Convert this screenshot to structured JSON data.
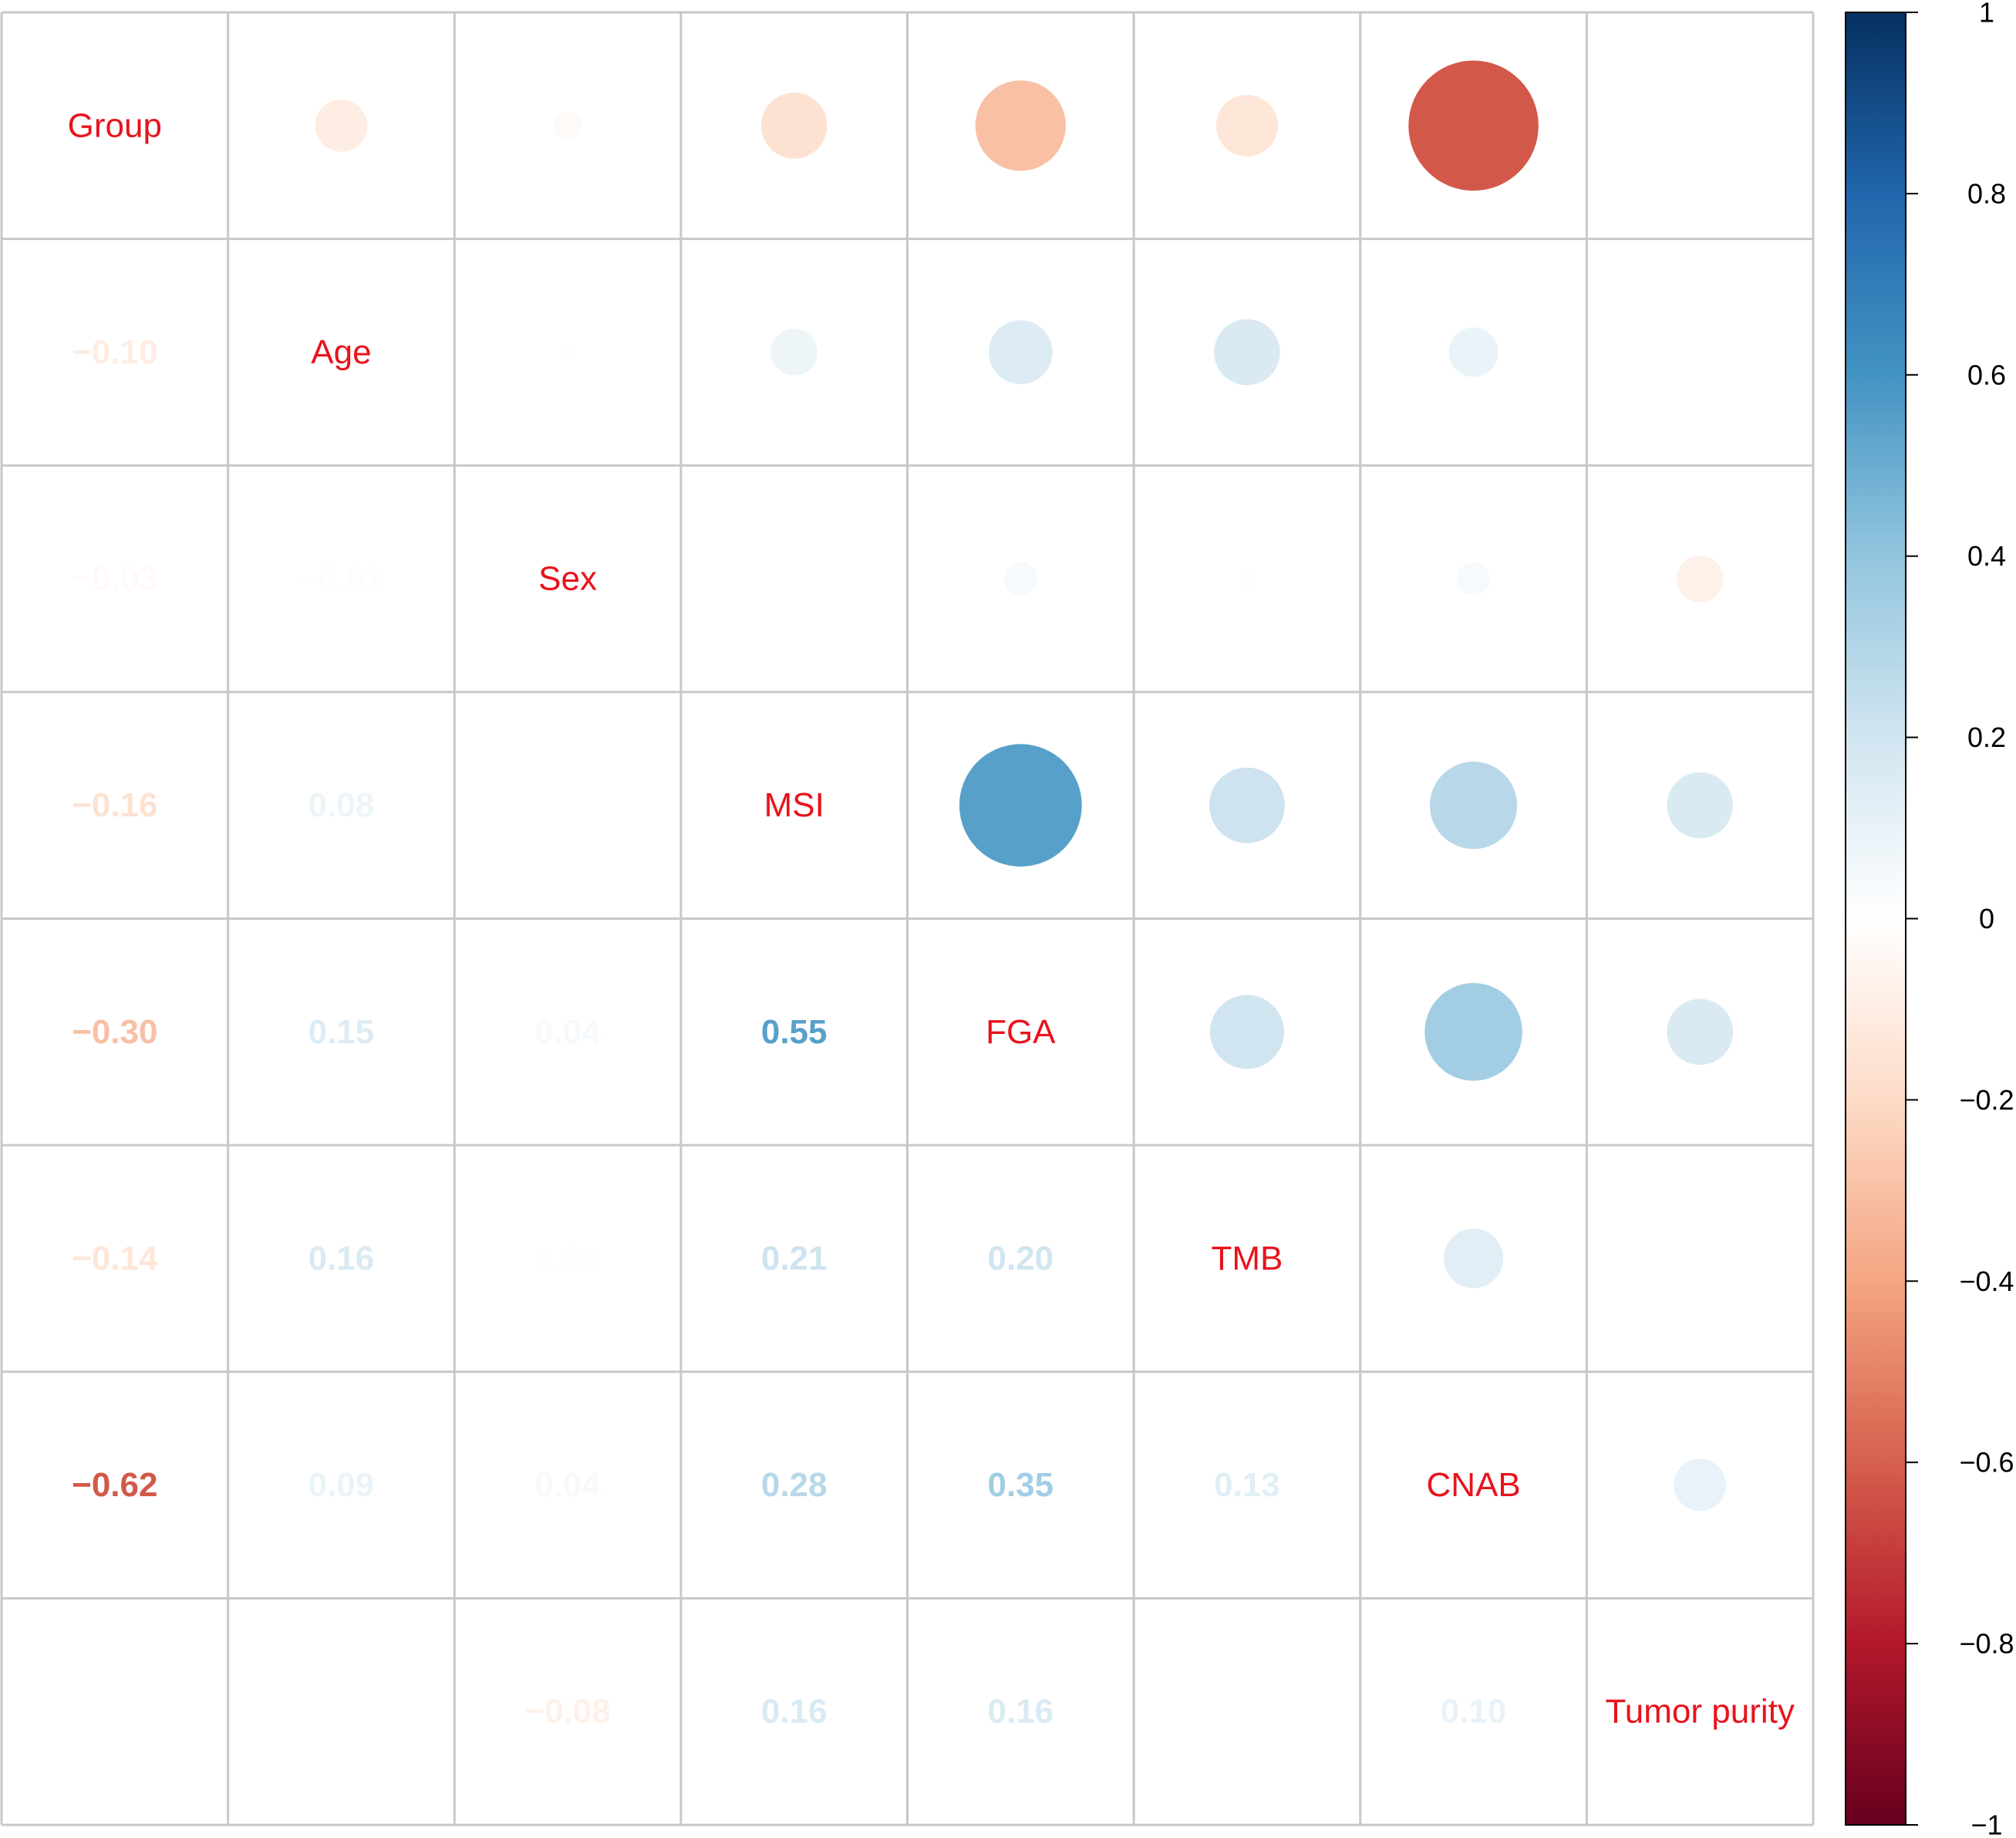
{
  "chart_data": {
    "type": "heatmap",
    "style": "correlation-matrix-mixed",
    "upper": "circle",
    "lower": "number",
    "variables": [
      "Group",
      "Age",
      "Sex",
      "MSI",
      "FGA",
      "TMB",
      "CNAB",
      "Tumor purity"
    ],
    "matrix": [
      [
        1.0,
        -0.1,
        -0.03,
        -0.16,
        -0.3,
        -0.14,
        -0.62,
        0.0
      ],
      [
        -0.1,
        1.0,
        -0.01,
        0.08,
        0.15,
        0.16,
        0.09,
        0.0
      ],
      [
        -0.03,
        -0.01,
        1.0,
        0.0,
        0.04,
        0.01,
        0.04,
        -0.08
      ],
      [
        -0.16,
        0.08,
        0.0,
        1.0,
        0.55,
        0.21,
        0.28,
        0.16
      ],
      [
        -0.3,
        0.15,
        0.04,
        0.55,
        1.0,
        0.2,
        0.35,
        0.16
      ],
      [
        -0.14,
        0.16,
        0.01,
        0.21,
        0.2,
        1.0,
        0.13,
        0.0
      ],
      [
        -0.62,
        0.09,
        0.04,
        0.28,
        0.35,
        0.13,
        1.0,
        0.1
      ],
      [
        0.0,
        0.0,
        -0.08,
        0.16,
        0.16,
        0.0,
        0.1,
        1.0
      ]
    ],
    "colorbar": {
      "range": [
        -1,
        1
      ],
      "ticks": [
        "1",
        "0.8",
        "0.6",
        "0.4",
        "0.2",
        "0",
        "−0.2",
        "−0.4",
        "−0.6",
        "−0.8",
        "−1"
      ],
      "colors": [
        "#67001F",
        "#B2182B",
        "#D6604D",
        "#F4A582",
        "#FDDBC7",
        "#FFFFFF",
        "#D1E5F0",
        "#92C5DE",
        "#4393C3",
        "#2166AC",
        "#053061"
      ]
    },
    "label_color": "#E8131C",
    "grid_color": "#C8C8C8"
  }
}
